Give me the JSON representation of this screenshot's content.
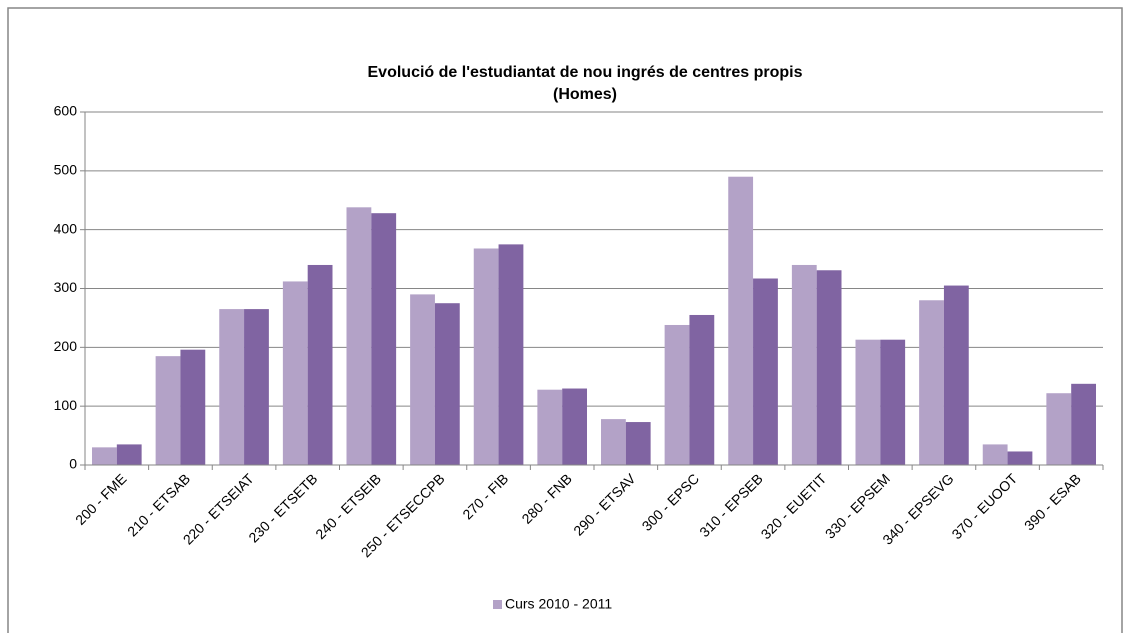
{
  "chart_data": {
    "type": "bar",
    "title": "Evolució de l'estudiantat de nou ingrés de centres propis",
    "subtitle": "(Homes)",
    "categories": [
      "200 - FME",
      "210 - ETSAB",
      "220 - ETSEIAT",
      "230 - ETSETB",
      "240 - ETSEIB",
      "250 - ETSECCPB",
      "270 - FIB",
      "280 - FNB",
      "290 - ETSAV",
      "300 - EPSC",
      "310 - EPSEB",
      "320 - EUETIT",
      "330 - EPSEM",
      "340 - EPSEVG",
      "370 - EUOOT",
      "390 - ESAB"
    ],
    "series": [
      {
        "name": "Curs 2010 - 2011",
        "color": "#b3a2c7",
        "values": [
          30,
          185,
          265,
          312,
          438,
          290,
          368,
          128,
          78,
          238,
          490,
          340,
          213,
          280,
          35,
          122
        ]
      },
      {
        "color": "#8064a2",
        "values": [
          35,
          196,
          265,
          340,
          428,
          275,
          375,
          130,
          73,
          255,
          317,
          331,
          213,
          305,
          23,
          138
        ]
      }
    ],
    "ylim": [
      0,
      600
    ],
    "yticks": [
      0,
      100,
      200,
      300,
      400,
      500,
      600
    ],
    "grid": true,
    "legend": "bottom"
  }
}
